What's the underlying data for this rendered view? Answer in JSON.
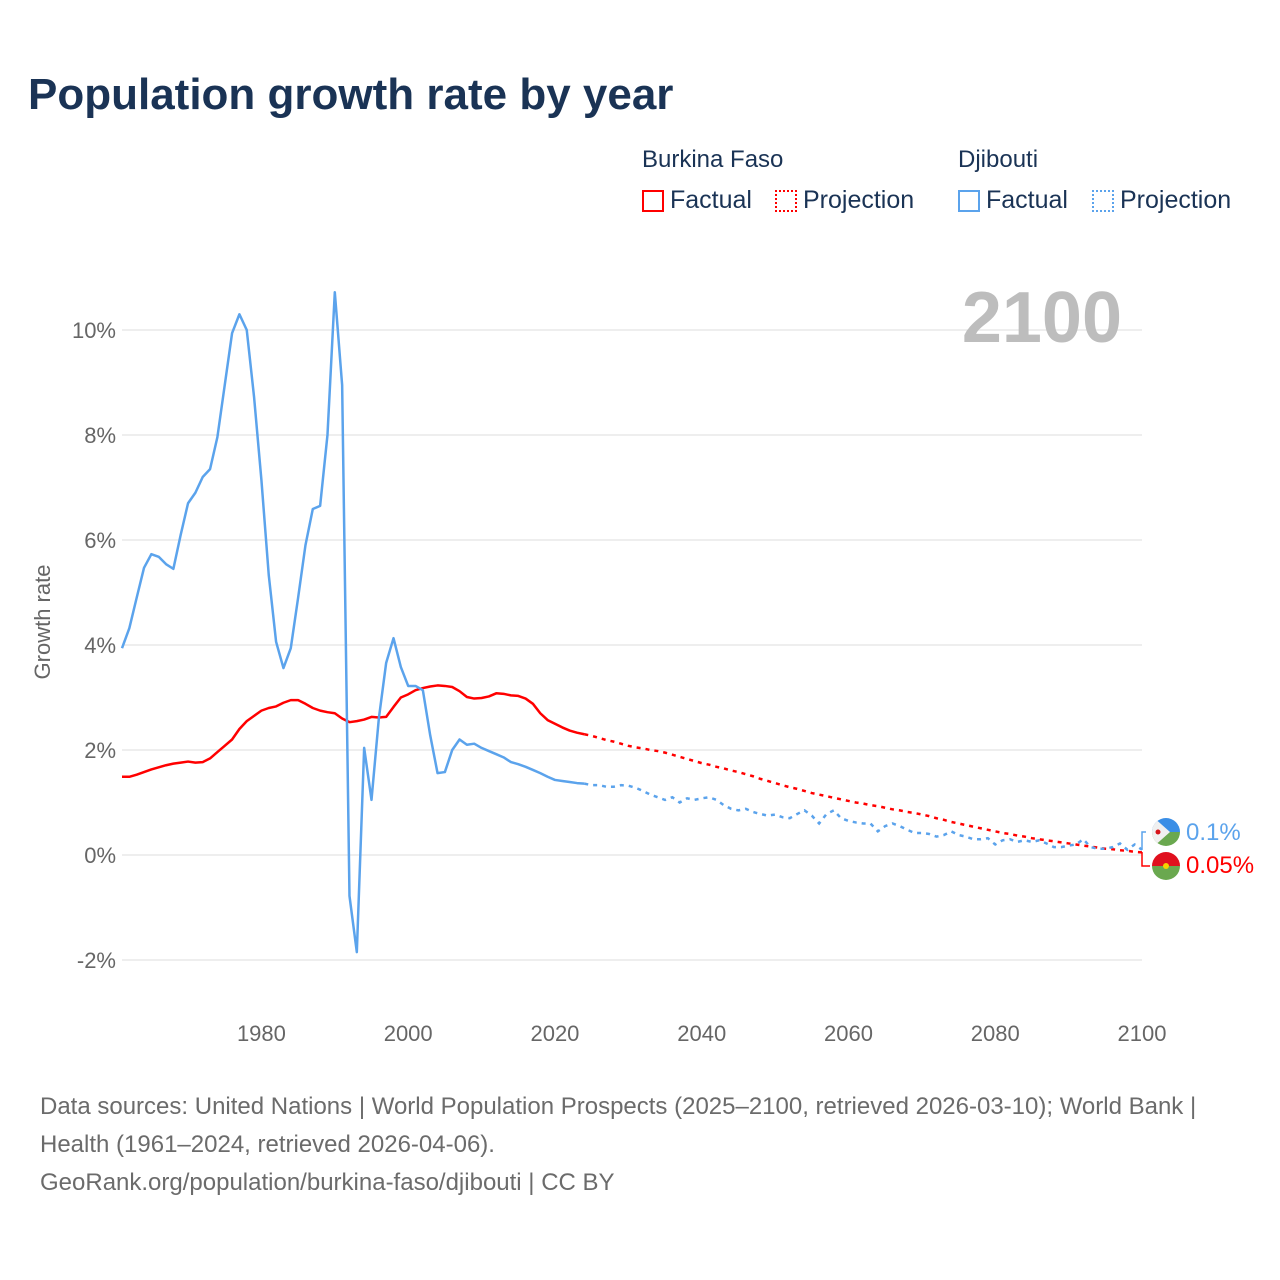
{
  "title": "Population growth rate by year",
  "legend": {
    "groups": [
      {
        "name": "Burkina Faso",
        "factual": "Factual",
        "projection": "Projection",
        "color": "#ff0000"
      },
      {
        "name": "Djibouti",
        "factual": "Factual",
        "projection": "Projection",
        "color": "#5ba3ec"
      }
    ]
  },
  "year_display": "2100",
  "end_labels": {
    "djibouti": "0.1%",
    "burkina": "0.05%"
  },
  "footer": {
    "sources": "Data sources: United Nations | World Population Prospects (2025–2100, retrieved 2026-03-10); World Bank | Health (1961–2024, retrieved 2026-04-06).",
    "credit": "GeoRank.org/population/burkina-faso/djibouti | CC BY"
  },
  "chart_data": {
    "type": "line",
    "title": "Population growth rate by year",
    "xlabel": "",
    "ylabel": "Growth rate",
    "xlim": [
      1961,
      2100
    ],
    "ylim": [
      -2.8,
      11
    ],
    "yticks": [
      -2,
      0,
      2,
      4,
      6,
      8,
      10
    ],
    "ytick_labels": [
      "-2%",
      "0%",
      "2%",
      "4%",
      "6%",
      "8%",
      "10%"
    ],
    "xticks": [
      1980,
      2000,
      2020,
      2040,
      2060,
      2080,
      2100
    ],
    "xtick_labels": [
      "1980",
      "2000",
      "2020",
      "2040",
      "2060",
      "2080",
      "2100"
    ],
    "grid": true,
    "legend_position": "top-right",
    "series": [
      {
        "name": "Burkina Faso",
        "color": "#ff0000",
        "factual_start": 1961,
        "factual": [
          1.49,
          1.49,
          1.53,
          1.58,
          1.63,
          1.67,
          1.71,
          1.74,
          1.76,
          1.78,
          1.76,
          1.77,
          1.84,
          1.96,
          2.08,
          2.2,
          2.4,
          2.55,
          2.65,
          2.75,
          2.8,
          2.83,
          2.9,
          2.95,
          2.95,
          2.88,
          2.8,
          2.75,
          2.72,
          2.7,
          2.6,
          2.53,
          2.55,
          2.58,
          2.63,
          2.62,
          2.63,
          2.82,
          3.0,
          3.06,
          3.14,
          3.18,
          3.21,
          3.23,
          3.22,
          3.2,
          3.12,
          3.01,
          2.98,
          2.99,
          3.02,
          3.08,
          3.07,
          3.04,
          3.03,
          2.98,
          2.88,
          2.7,
          2.57,
          2.5,
          2.43,
          2.37,
          2.33,
          2.3
        ],
        "projection_start": 2025,
        "projection": [
          2.27,
          2.23,
          2.19,
          2.16,
          2.12,
          2.08,
          2.05,
          2.03,
          2.0,
          1.98,
          1.95,
          1.91,
          1.87,
          1.83,
          1.79,
          1.75,
          1.72,
          1.68,
          1.65,
          1.61,
          1.58,
          1.54,
          1.5,
          1.45,
          1.41,
          1.37,
          1.33,
          1.29,
          1.26,
          1.22,
          1.18,
          1.15,
          1.12,
          1.09,
          1.06,
          1.03,
          1.0,
          0.98,
          0.95,
          0.93,
          0.9,
          0.87,
          0.85,
          0.82,
          0.8,
          0.77,
          0.74,
          0.7,
          0.67,
          0.63,
          0.6,
          0.57,
          0.54,
          0.51,
          0.48,
          0.45,
          0.42,
          0.4,
          0.37,
          0.35,
          0.32,
          0.3,
          0.28,
          0.26,
          0.24,
          0.22,
          0.2,
          0.18,
          0.16,
          0.14,
          0.12,
          0.11,
          0.09,
          0.08,
          0.06,
          0.05
        ]
      },
      {
        "name": "Djibouti",
        "color": "#5ba3ec",
        "factual_start": 1961,
        "factual": [
          3.94,
          4.32,
          4.9,
          5.47,
          5.73,
          5.68,
          5.54,
          5.45,
          6.1,
          6.7,
          6.9,
          7.2,
          7.35,
          7.96,
          8.95,
          9.94,
          10.3,
          10.0,
          8.72,
          7.14,
          5.33,
          4.06,
          3.56,
          3.94,
          4.9,
          5.9,
          6.59,
          6.65,
          8.0,
          10.72,
          8.95,
          -0.78,
          -1.85,
          2.04,
          1.05,
          2.6,
          3.66,
          4.13,
          3.58,
          3.22,
          3.22,
          3.14,
          2.28,
          1.56,
          1.58,
          2.0,
          2.2,
          2.1,
          2.12,
          2.04,
          1.98,
          1.92,
          1.86,
          1.77,
          1.73,
          1.68,
          1.62,
          1.56,
          1.49,
          1.43,
          1.41,
          1.39,
          1.37,
          1.36
        ],
        "projection_start": 2025,
        "projection": [
          1.33,
          1.33,
          1.3,
          1.3,
          1.33,
          1.32,
          1.28,
          1.22,
          1.15,
          1.1,
          1.05,
          1.1,
          1.0,
          1.08,
          1.05,
          1.08,
          1.1,
          1.05,
          0.95,
          0.88,
          0.85,
          0.88,
          0.82,
          0.78,
          0.75,
          0.77,
          0.72,
          0.7,
          0.78,
          0.85,
          0.75,
          0.6,
          0.78,
          0.85,
          0.7,
          0.65,
          0.62,
          0.6,
          0.6,
          0.45,
          0.55,
          0.6,
          0.55,
          0.48,
          0.42,
          0.42,
          0.4,
          0.35,
          0.38,
          0.45,
          0.38,
          0.35,
          0.3,
          0.3,
          0.32,
          0.2,
          0.28,
          0.3,
          0.25,
          0.28,
          0.25,
          0.28,
          0.22,
          0.15,
          0.15,
          0.18,
          0.2,
          0.3,
          0.15,
          0.12,
          0.12,
          0.15,
          0.22,
          0.1,
          0.2,
          0.1
        ]
      }
    ]
  }
}
